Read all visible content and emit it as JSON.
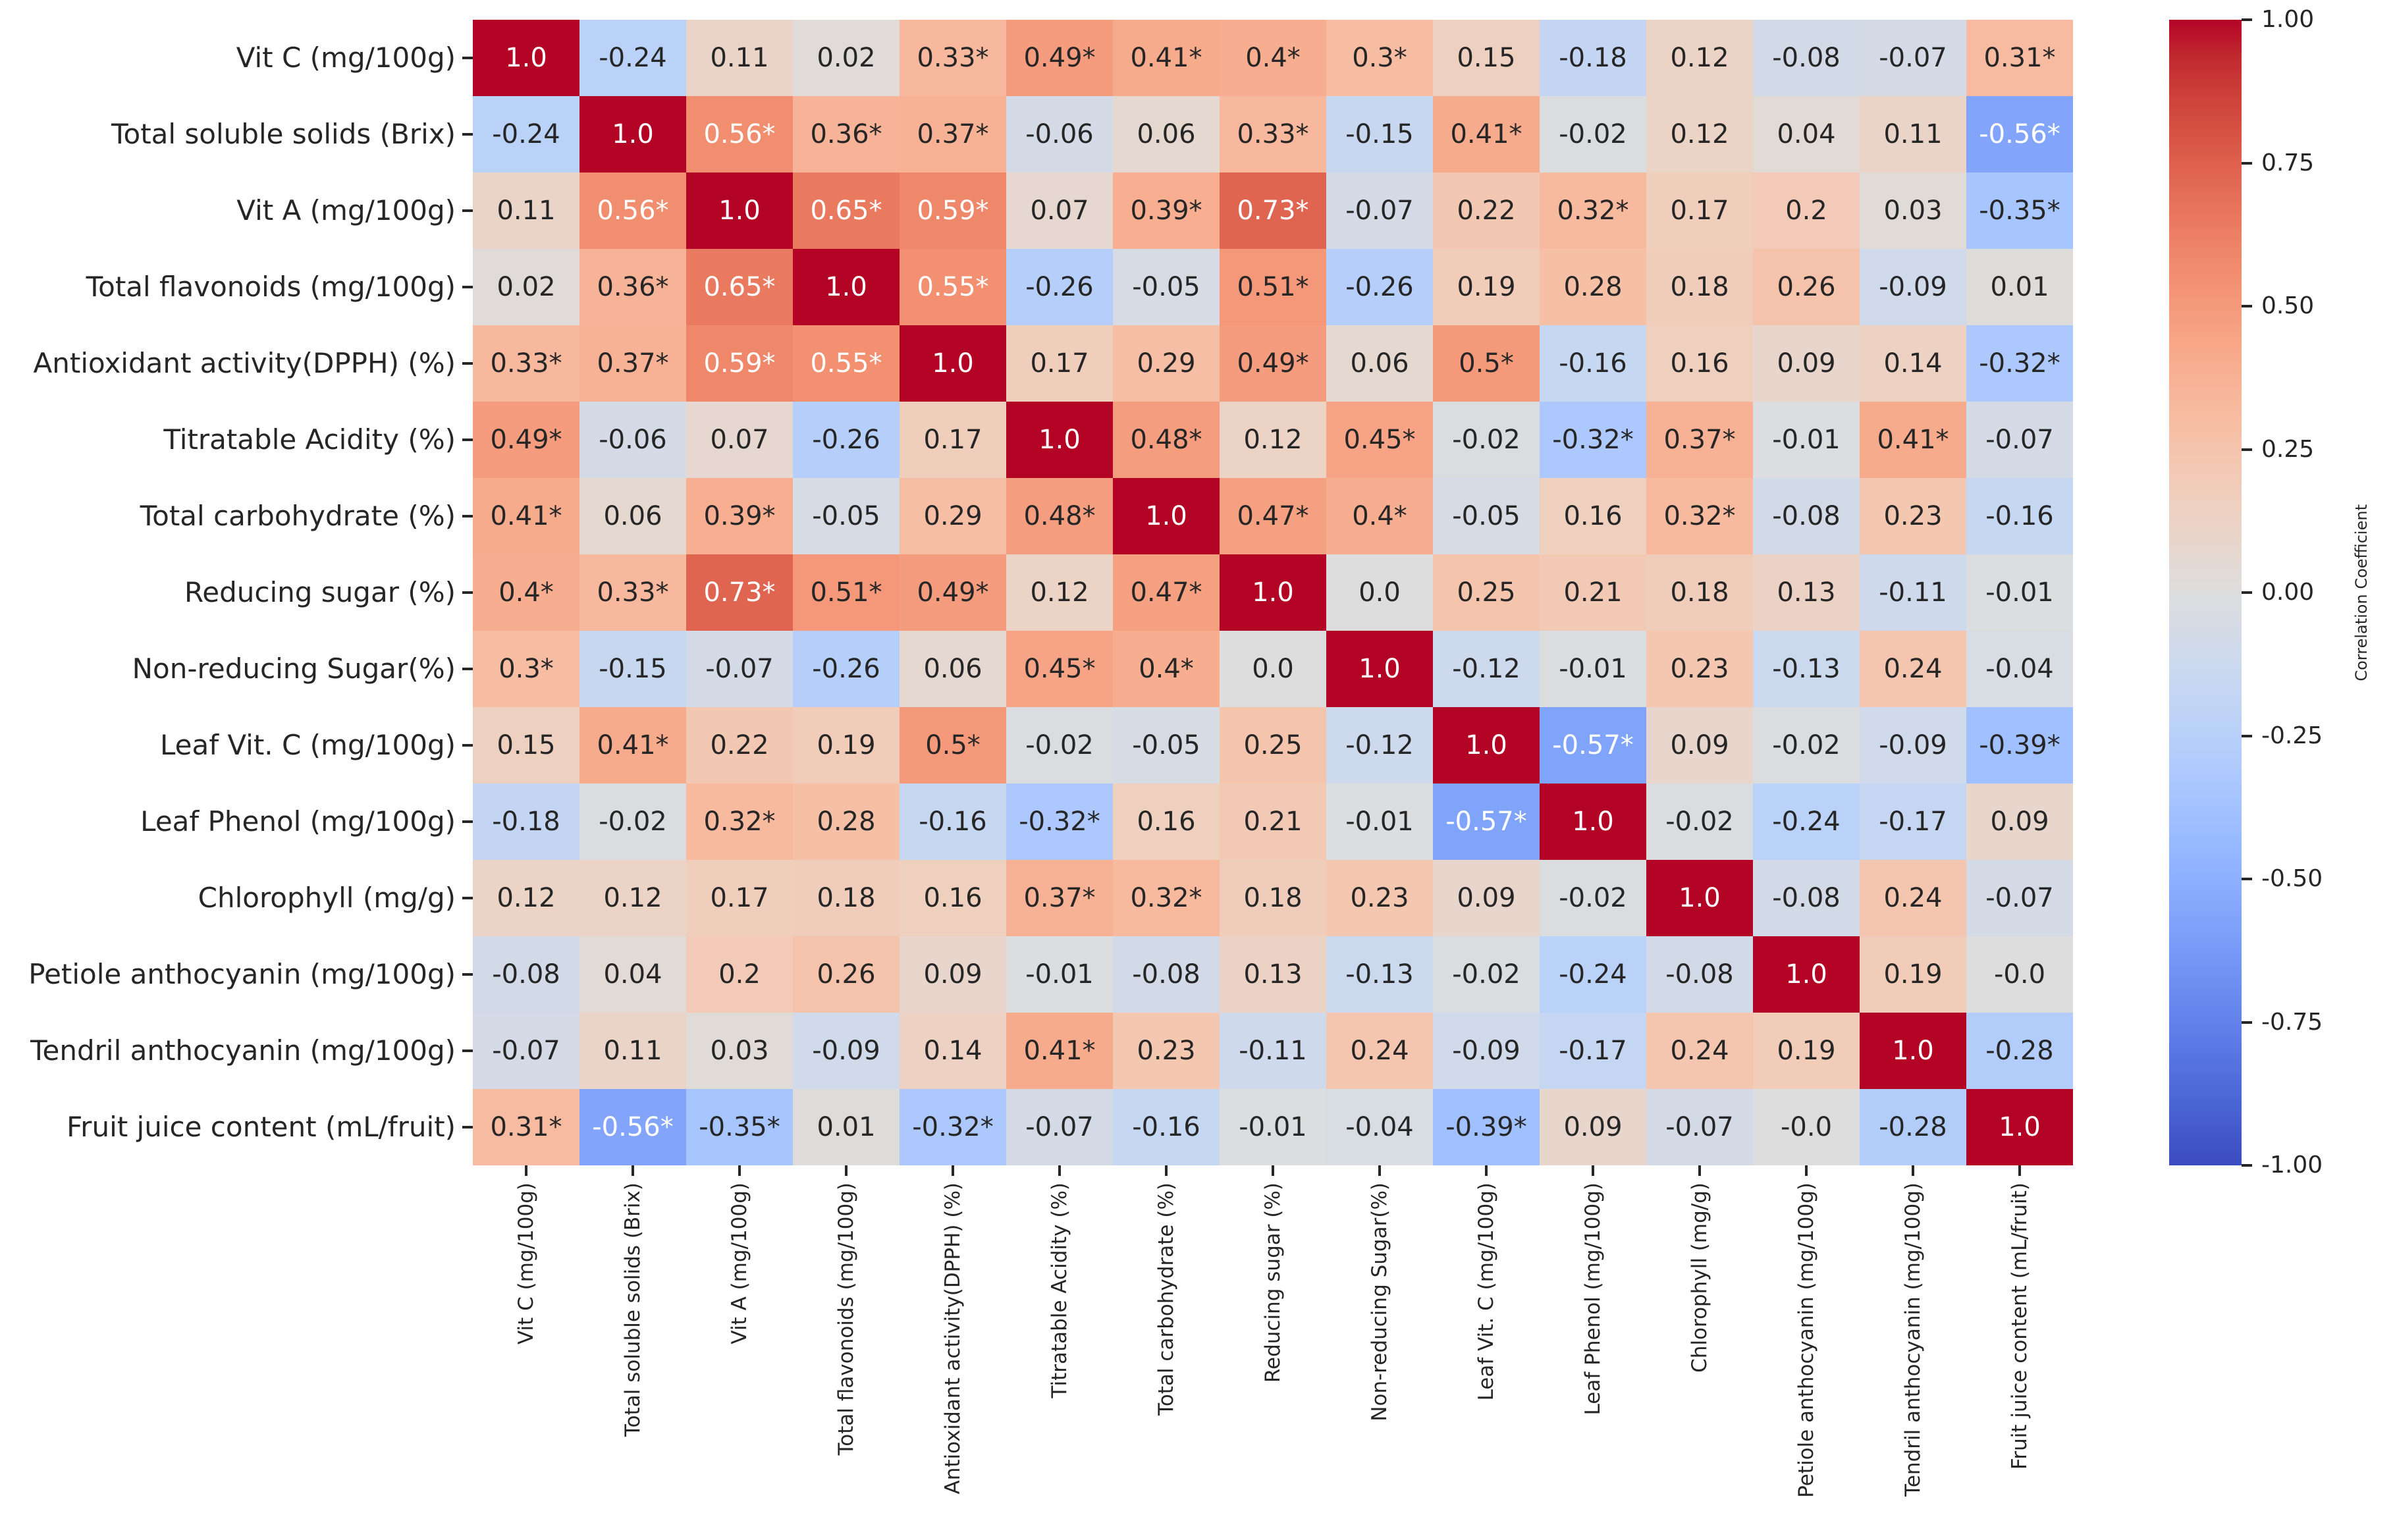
{
  "chart_data": {
    "type": "heatmap",
    "title": "",
    "significance_marker": "*",
    "labels": [
      "Vit C (mg/100g)",
      "Total soluble solids (Brix)",
      "Vit A (mg/100g)",
      "Total flavonoids (mg/100g)",
      "Antioxidant activity(DPPH) (%)",
      "Titratable Acidity (%)",
      "Total carbohydrate (%)",
      "Reducing sugar (%)",
      "Non-reducing Sugar(%)",
      "Leaf Vit. C (mg/100g)",
      "Leaf Phenol (mg/100g)",
      "Chlorophyll (mg/g)",
      "Petiole anthocyanin (mg/100g)",
      "Tendril anthocyanin (mg/100g)",
      "Fruit juice content (mL/fruit)"
    ],
    "matrix": [
      [
        "1.0",
        "-0.24",
        "0.11",
        "0.02",
        "0.33*",
        "0.49*",
        "0.41*",
        "0.4*",
        "0.3*",
        "0.15",
        "-0.18",
        "0.12",
        "-0.08",
        "-0.07",
        "0.31*"
      ],
      [
        "-0.24",
        "1.0",
        "0.56*",
        "0.36*",
        "0.37*",
        "-0.06",
        "0.06",
        "0.33*",
        "-0.15",
        "0.41*",
        "-0.02",
        "0.12",
        "0.04",
        "0.11",
        "-0.56*"
      ],
      [
        "0.11",
        "0.56*",
        "1.0",
        "0.65*",
        "0.59*",
        "0.07",
        "0.39*",
        "0.73*",
        "-0.07",
        "0.22",
        "0.32*",
        "0.17",
        "0.2",
        "0.03",
        "-0.35*"
      ],
      [
        "0.02",
        "0.36*",
        "0.65*",
        "1.0",
        "0.55*",
        "-0.26",
        "-0.05",
        "0.51*",
        "-0.26",
        "0.19",
        "0.28",
        "0.18",
        "0.26",
        "-0.09",
        "0.01"
      ],
      [
        "0.33*",
        "0.37*",
        "0.59*",
        "0.55*",
        "1.0",
        "0.17",
        "0.29",
        "0.49*",
        "0.06",
        "0.5*",
        "-0.16",
        "0.16",
        "0.09",
        "0.14",
        "-0.32*"
      ],
      [
        "0.49*",
        "-0.06",
        "0.07",
        "-0.26",
        "0.17",
        "1.0",
        "0.48*",
        "0.12",
        "0.45*",
        "-0.02",
        "-0.32*",
        "0.37*",
        "-0.01",
        "0.41*",
        "-0.07"
      ],
      [
        "0.41*",
        "0.06",
        "0.39*",
        "-0.05",
        "0.29",
        "0.48*",
        "1.0",
        "0.47*",
        "0.4*",
        "-0.05",
        "0.16",
        "0.32*",
        "-0.08",
        "0.23",
        "-0.16"
      ],
      [
        "0.4*",
        "0.33*",
        "0.73*",
        "0.51*",
        "0.49*",
        "0.12",
        "0.47*",
        "1.0",
        "0.0",
        "0.25",
        "0.21",
        "0.18",
        "0.13",
        "-0.11",
        "-0.01"
      ],
      [
        "0.3*",
        "-0.15",
        "-0.07",
        "-0.26",
        "0.06",
        "0.45*",
        "0.4*",
        "0.0",
        "1.0",
        "-0.12",
        "-0.01",
        "0.23",
        "-0.13",
        "0.24",
        "-0.04"
      ],
      [
        "0.15",
        "0.41*",
        "0.22",
        "0.19",
        "0.5*",
        "-0.02",
        "-0.05",
        "0.25",
        "-0.12",
        "1.0",
        "-0.57*",
        "0.09",
        "-0.02",
        "-0.09",
        "-0.39*"
      ],
      [
        "-0.18",
        "-0.02",
        "0.32*",
        "0.28",
        "-0.16",
        "-0.32*",
        "0.16",
        "0.21",
        "-0.01",
        "-0.57*",
        "1.0",
        "-0.02",
        "-0.24",
        "-0.17",
        "0.09"
      ],
      [
        "0.12",
        "0.12",
        "0.17",
        "0.18",
        "0.16",
        "0.37*",
        "0.32*",
        "0.18",
        "0.23",
        "0.09",
        "-0.02",
        "1.0",
        "-0.08",
        "0.24",
        "-0.07"
      ],
      [
        "-0.08",
        "0.04",
        "0.2",
        "0.26",
        "0.09",
        "-0.01",
        "-0.08",
        "0.13",
        "-0.13",
        "-0.02",
        "-0.24",
        "-0.08",
        "1.0",
        "0.19",
        "-0.0"
      ],
      [
        "-0.07",
        "0.11",
        "0.03",
        "-0.09",
        "0.14",
        "0.41*",
        "0.23",
        "-0.11",
        "0.24",
        "-0.09",
        "-0.17",
        "0.24",
        "0.19",
        "1.0",
        "-0.28"
      ],
      [
        "0.31*",
        "-0.56*",
        "-0.35*",
        "0.01",
        "-0.32*",
        "-0.07",
        "-0.16",
        "-0.01",
        "-0.04",
        "-0.39*",
        "0.09",
        "-0.07",
        "-0.0",
        "-0.28",
        "1.0"
      ]
    ],
    "colorbar": {
      "label": "Correlation Coefficient",
      "ticks": [
        "1.00",
        "0.75",
        "0.50",
        "0.25",
        "0.00",
        "-0.25",
        "-0.50",
        "-0.75",
        "-1.00"
      ],
      "range": [
        -1,
        1
      ],
      "colormap": "coolwarm",
      "color_max": "#b40426",
      "color_mid": "#dddddd",
      "color_min": "#3b4cc0"
    },
    "annotation_text_colors": {
      "dark": "#262626",
      "light": "#ffffff"
    }
  }
}
